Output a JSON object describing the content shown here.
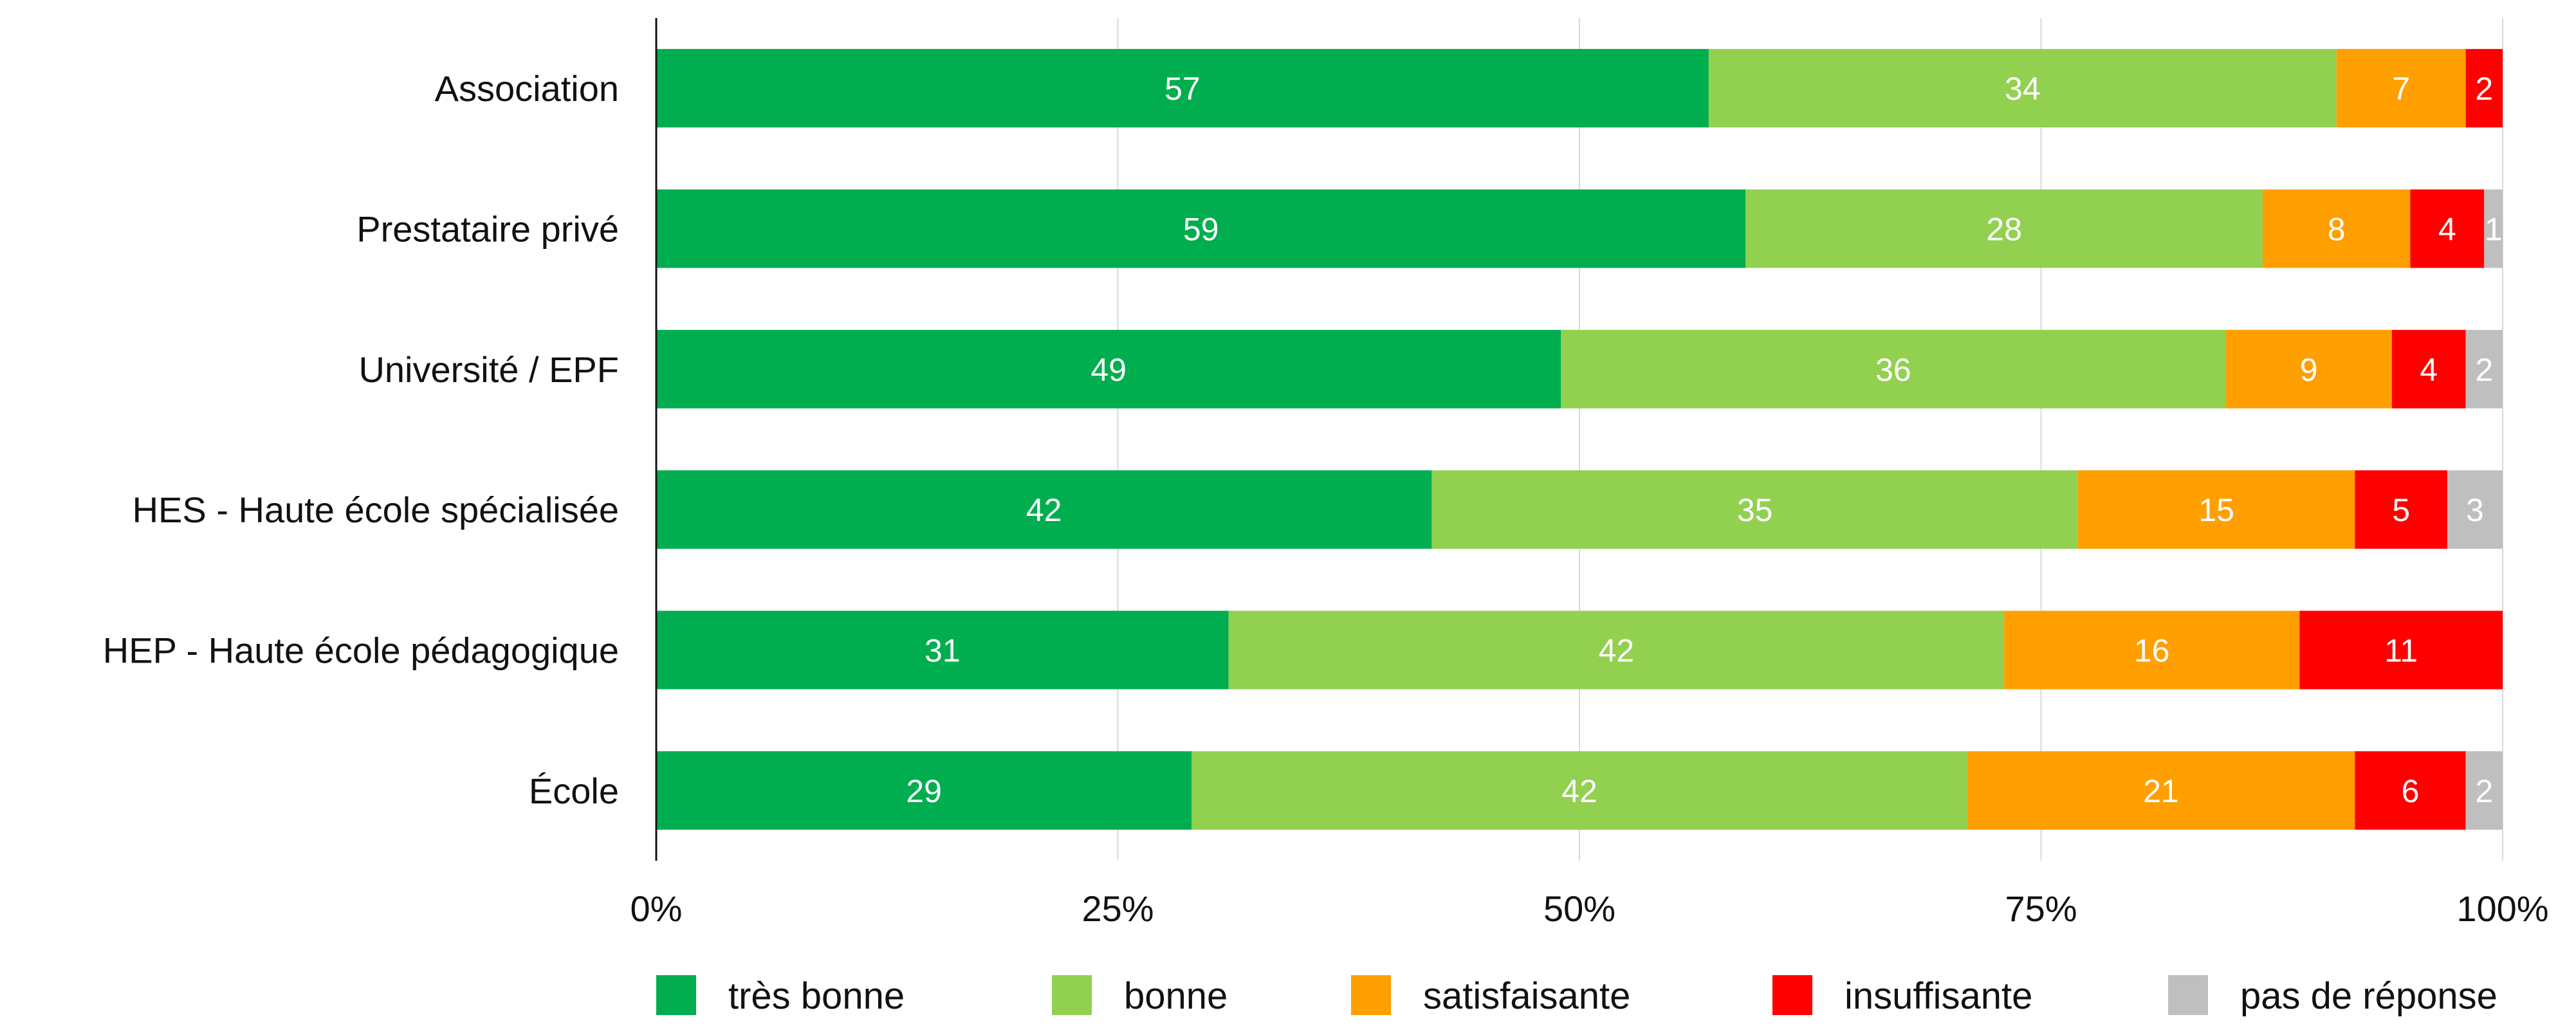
{
  "chart_data": {
    "type": "bar",
    "orientation": "horizontal",
    "stacked": true,
    "title": "",
    "xlabel": "",
    "ylabel": "",
    "xlim": [
      0,
      100
    ],
    "x_ticks": [
      "0%",
      "25%",
      "50%",
      "75%",
      "100%"
    ],
    "grid": "vertical",
    "legend_position": "bottom",
    "categories": [
      "Association",
      "Prestataire privé",
      "Université / EPF",
      "HES - Haute école spécialisée",
      "HEP - Haute école pédagogique",
      "École"
    ],
    "series": [
      {
        "name": "très bonne",
        "color": "#00AD4F",
        "values": [
          57,
          59,
          49,
          42,
          31,
          29
        ],
        "labels": [
          "57",
          "59",
          "49",
          "42",
          "31",
          "29"
        ]
      },
      {
        "name": "bonne",
        "color": "#92D050",
        "values": [
          34,
          28,
          36,
          35,
          42,
          42
        ],
        "labels": [
          "34",
          "28",
          "36",
          "35",
          "42",
          "42"
        ]
      },
      {
        "name": "satisfaisante",
        "color": "#FF9F00",
        "values": [
          7,
          8,
          9,
          15,
          16,
          21
        ],
        "labels": [
          "7",
          "8",
          "9",
          "15",
          "16",
          "21"
        ]
      },
      {
        "name": "insuffisante",
        "color": "#FF0000",
        "values": [
          2,
          4,
          4,
          5,
          11,
          6
        ],
        "labels": [
          "2",
          "4",
          "4",
          "5",
          "11",
          "6"
        ]
      },
      {
        "name": "pas de réponse",
        "color": "#BFBFBF",
        "values": [
          0,
          1,
          2,
          3,
          0,
          2
        ],
        "labels": [
          "",
          "1",
          "2",
          "3",
          "",
          "2"
        ]
      }
    ]
  }
}
